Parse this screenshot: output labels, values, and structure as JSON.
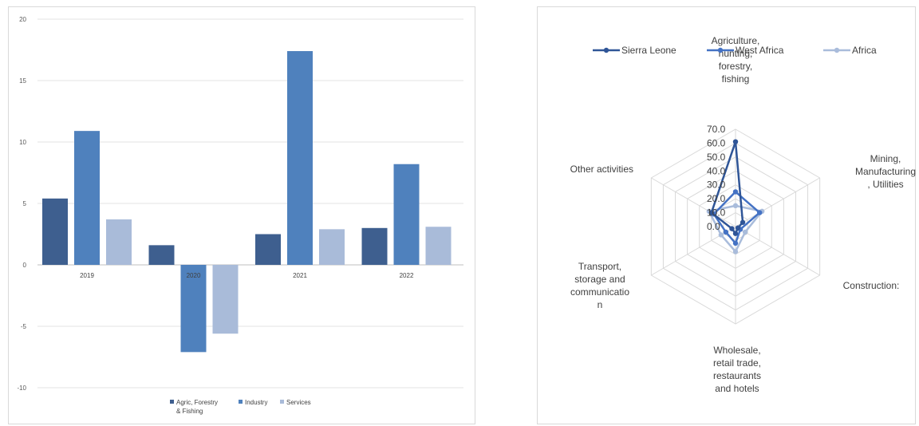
{
  "chart_data": [
    {
      "type": "bar",
      "categories": [
        "2019",
        "2020",
        "2021",
        "2022"
      ],
      "series": [
        {
          "name": "Agric, Forestry & Fishing",
          "name_lines": [
            "Agric, Forestry",
            "& Fishing"
          ],
          "color": "#3E5F8F",
          "values": [
            5.4,
            1.6,
            2.5,
            3.0
          ]
        },
        {
          "name": "Industry",
          "name_lines": [
            "Industry"
          ],
          "color": "#4F81BD",
          "values": [
            10.9,
            -7.1,
            17.4,
            8.2
          ]
        },
        {
          "name": "Services",
          "name_lines": [
            "Services"
          ],
          "color": "#A9BBD9",
          "values": [
            3.7,
            -5.6,
            2.9,
            3.1
          ]
        }
      ],
      "yticks": [
        "20",
        "15",
        "10",
        "5",
        "0",
        "-5",
        "-10"
      ],
      "ylim": [
        -10,
        20
      ],
      "grid": true,
      "legend_position": "bottom"
    },
    {
      "type": "radar",
      "axes": [
        {
          "label": "Agriculture, hunting, forestry, fishing",
          "lines": [
            "Agriculture,",
            "hunting,",
            "forestry,",
            "fishing"
          ]
        },
        {
          "label": "Mining, Manufacturing, Utilities",
          "lines": [
            "Mining,",
            "Manufacturing",
            ", Utilities"
          ]
        },
        {
          "label": "Construction:",
          "lines": [
            "Construction:"
          ]
        },
        {
          "label": "Wholesale, retail trade, restaurants and hotels",
          "lines": [
            "Wholesale,",
            "retail trade,",
            "restaurants",
            "and hotels"
          ]
        },
        {
          "label": "Transport, storage and communication",
          "lines": [
            "Transport,",
            "storage and",
            "communicatio",
            "n"
          ]
        },
        {
          "label": "Other activities",
          "lines": [
            "Other activities"
          ]
        }
      ],
      "series": [
        {
          "name": "Sierra Leone",
          "color": "#2F5597",
          "values": [
            61,
            6,
            2,
            5,
            3,
            20
          ]
        },
        {
          "name": "West Africa",
          "color": "#4472C4",
          "values": [
            25,
            20,
            4,
            12,
            8,
            18
          ]
        },
        {
          "name": "Africa",
          "color": "#A9BCDB",
          "values": [
            15,
            22,
            8,
            18,
            12,
            22
          ]
        }
      ],
      "rticks": [
        "0.0",
        "10.0",
        "20.0",
        "30.0",
        "40.0",
        "50.0",
        "60.0",
        "70.0"
      ],
      "rlim": [
        0,
        70
      ],
      "legend_position": "top"
    }
  ]
}
